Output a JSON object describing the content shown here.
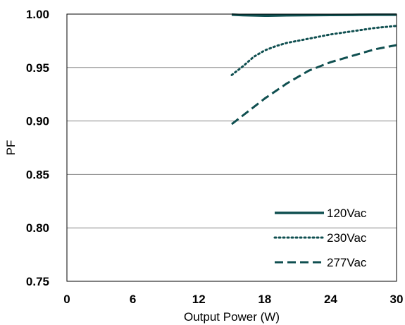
{
  "chart_data": {
    "type": "line",
    "title": "",
    "xlabel": "Output Power (W)",
    "ylabel": "PF",
    "xlim": [
      0,
      30
    ],
    "ylim": [
      0.75,
      1.0
    ],
    "x_ticks": [
      0,
      6,
      12,
      18,
      24,
      30
    ],
    "y_ticks": [
      0.75,
      0.8,
      0.85,
      0.9,
      0.95,
      1.0
    ],
    "x_tick_labels": [
      "0",
      "6",
      "12",
      "18",
      "24",
      "30"
    ],
    "y_tick_labels": [
      "0.75",
      "0.80",
      "0.85",
      "0.90",
      "0.95",
      "1.00"
    ],
    "grid": "horizontal",
    "legend_position": "bottom-right",
    "series": [
      {
        "name": "120Vac",
        "style": "solid",
        "color": "#0f4f50",
        "x": [
          15,
          16,
          18,
          20,
          22,
          24,
          26,
          28,
          30
        ],
        "y": [
          0.9995,
          0.999,
          0.9985,
          0.9988,
          0.999,
          0.9992,
          0.9993,
          0.9994,
          0.9994
        ]
      },
      {
        "name": "230Vac",
        "style": "dotted",
        "color": "#0f4f50",
        "x": [
          15,
          16,
          17,
          18,
          19,
          20,
          22,
          24,
          26,
          28,
          30
        ],
        "y": [
          0.943,
          0.951,
          0.96,
          0.966,
          0.97,
          0.973,
          0.977,
          0.981,
          0.984,
          0.987,
          0.989
        ]
      },
      {
        "name": "277Vac",
        "style": "dashed",
        "color": "#0f4f50",
        "x": [
          15,
          16,
          18,
          20,
          22,
          24,
          26,
          28,
          30
        ],
        "y": [
          0.897,
          0.905,
          0.921,
          0.935,
          0.947,
          0.955,
          0.961,
          0.967,
          0.971
        ]
      }
    ]
  }
}
